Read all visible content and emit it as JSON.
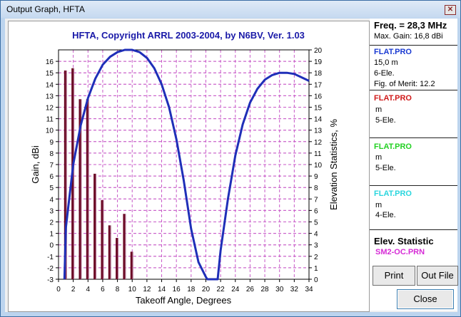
{
  "window": {
    "title": "Output Graph, HFTA"
  },
  "colors": {
    "title_blue": "#1a1aa8",
    "curve_blue": "#1f2fb8",
    "bar_maroon": "#6b0a25",
    "grid_pink": "#c85ac8",
    "flat1": "#1a3ad2",
    "flat2": "#d01a1a",
    "flat3": "#23d123",
    "flat4": "#2ad6de",
    "stat_magenta": "#d62bd6"
  },
  "chart_data": {
    "type": "line",
    "title": "HFTA, Copyright ARRL 2003-2004, by N6BV, Ver. 1.03",
    "xlabel": "Takeoff Angle, Degrees",
    "ylabel_left": "Gain, dBi",
    "ylabel_right": "Elevation Statistics, %",
    "xlim": [
      0,
      34
    ],
    "ylim_left": [
      -3,
      17
    ],
    "ylim_right": [
      0,
      20
    ],
    "x_ticks": [
      "0",
      "2",
      "4",
      "6",
      "8",
      "10",
      "12",
      "14",
      "16",
      "18",
      "20",
      "22",
      "24",
      "26",
      "28",
      "30",
      "32",
      "34"
    ],
    "y_left_ticks": [
      "-3",
      "-2",
      "-1",
      "0",
      "1",
      "2",
      "3",
      "4",
      "5",
      "6",
      "7",
      "8",
      "9",
      "10",
      "11",
      "12",
      "13",
      "14",
      "15",
      "16"
    ],
    "y_right_ticks": [
      "0",
      "1",
      "2",
      "3",
      "4",
      "5",
      "6",
      "7",
      "8",
      "9",
      "10",
      "11",
      "12",
      "13",
      "14",
      "15",
      "16",
      "17",
      "18",
      "19",
      "20"
    ],
    "series": [
      {
        "name": "FLAT.PRO",
        "x": [
          0.8,
          1,
          2,
          3,
          4,
          5,
          6,
          7,
          8,
          9,
          10,
          11,
          12,
          13,
          14,
          15,
          16,
          17,
          18,
          19,
          20,
          20.2,
          21.6,
          22,
          23,
          24,
          25,
          26,
          27,
          28,
          29,
          30,
          31,
          32,
          33,
          34
        ],
        "y": [
          -3,
          1.5,
          7.0,
          10.4,
          12.8,
          14.5,
          15.7,
          16.4,
          16.8,
          17.0,
          17.0,
          16.8,
          16.3,
          15.4,
          14.0,
          12.0,
          9.2,
          5.6,
          1.4,
          -1.5,
          -2.8,
          -3,
          -3,
          -0.5,
          4.0,
          7.8,
          10.5,
          12.4,
          13.6,
          14.4,
          14.8,
          15.0,
          15.0,
          14.9,
          14.6,
          14.3
        ]
      }
    ],
    "bars": {
      "name": "SM2-OC.PRN",
      "x": [
        1,
        2,
        3,
        4,
        5,
        6,
        7,
        8,
        9,
        10
      ],
      "values": [
        18.2,
        18.4,
        15.7,
        15.7,
        9.2,
        6.9,
        4.7,
        3.6,
        5.7,
        2.4
      ]
    }
  },
  "panel": {
    "freq": "Freq. = 28,3 MHz",
    "max_gain": "Max. Gain: 16,8 dBi",
    "entries": [
      {
        "name": "FLAT.PRO",
        "line1": "15,0 m",
        "line2": "6-Ele.",
        "line3": "Fig. of Merit:  12.2"
      },
      {
        "name": "FLAT.PRO",
        "line1": " m",
        "line2": "5-Ele."
      },
      {
        "name": "FLAT.PRO",
        "line1": " m",
        "line2": "5-Ele."
      },
      {
        "name": "FLAT.PRO",
        "line1": " m",
        "line2": "4-Ele."
      }
    ],
    "elev_title": "Elev. Statistic",
    "elev_file": "SM2-OC.PRN"
  },
  "buttons": {
    "print": "Print",
    "outfile": "Out File",
    "close": "Close"
  }
}
